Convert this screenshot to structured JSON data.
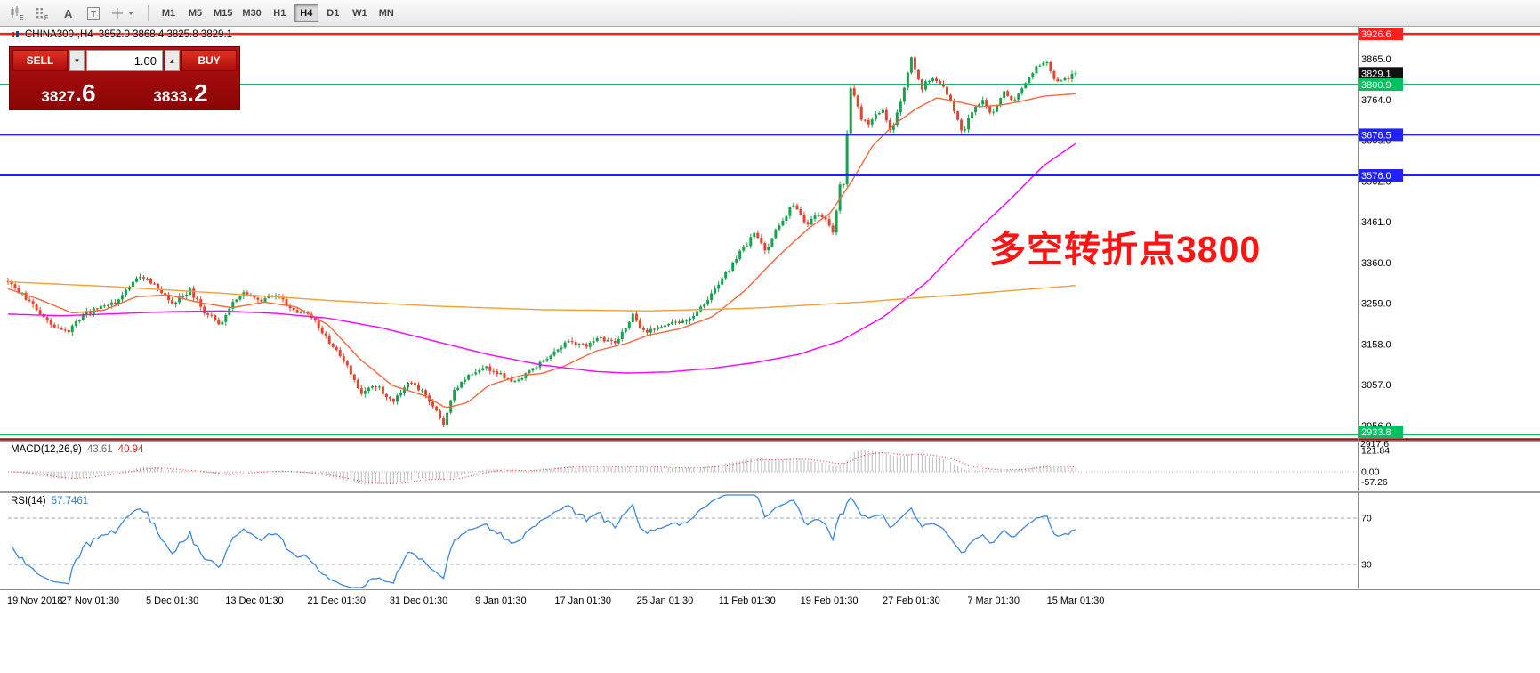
{
  "toolbar": {
    "timeframes": [
      {
        "label": "M1"
      },
      {
        "label": "M5"
      },
      {
        "label": "M15"
      },
      {
        "label": "M30"
      },
      {
        "label": "H1"
      },
      {
        "label": "H4",
        "active": true
      },
      {
        "label": "D1"
      },
      {
        "label": "W1"
      },
      {
        "label": "MN"
      }
    ]
  },
  "chart": {
    "symbol": "CHINA300-,H4",
    "ohlc_text": "3852.0 3868.4 3825.8 3829.1"
  },
  "trade": {
    "sell_label": "SELL",
    "buy_label": "BUY",
    "volume": "1.00",
    "spin_down": "▼",
    "spin_up": "▲",
    "bid_main": "3827",
    "bid_frac": ".6",
    "ask_main": "3833",
    "ask_frac": ".2"
  },
  "macd": {
    "label": "MACD(12,26,9)",
    "main": "43.61",
    "signal": "40.94",
    "scale_labels": [
      "121.84",
      "0.00",
      "-57.26"
    ],
    "scale_values": [
      121.84,
      0,
      -57.26
    ]
  },
  "rsi": {
    "label": "RSI(14)",
    "value": "57.7461",
    "level_labels": [
      "70",
      "30"
    ],
    "level_values": [
      70,
      30
    ]
  },
  "timeline": {
    "dates": [
      "19 Nov 2018",
      "27 Nov 01:30",
      "5 Dec 01:30",
      "13 Dec 01:30",
      "21 Dec 01:30",
      "31 Dec 01:30",
      "9 Jan 01:30",
      "17 Jan 01:30",
      "25 Jan 01:30",
      "11 Feb 01:30",
      "19 Feb 01:30",
      "27 Feb 01:30",
      "7 Mar 01:30",
      "15 Mar 01:30"
    ]
  },
  "labels_extra": {
    "clipped_price_label": "2917.6"
  },
  "chart_data": {
    "type": "candlestick",
    "symbol": "CHINA300-",
    "timeframe": "H4",
    "ohlc_header": {
      "open": 3852.0,
      "high": 3868.4,
      "low": 3825.8,
      "close": 3829.1
    },
    "last_price": 3829.1,
    "bid": 3827.6,
    "ask": 3833.2,
    "ylim": [
      2918.5,
      3944.4
    ],
    "candle_count": 300,
    "bull_color": "#18a24c",
    "bear_color": "#e8432d",
    "y_ticks": [
      3865.0,
      3764.0,
      3663.0,
      3562.0,
      3461.0,
      3360.0,
      3259.0,
      3158.0,
      3057.0,
      2956.0
    ],
    "hlines": [
      {
        "price": 3926.6,
        "color": "#ff1f1f",
        "width": 2.5
      },
      {
        "price": 3800.9,
        "color": "#00c060",
        "width": 2
      },
      {
        "price": 3676.5,
        "color": "#2121ff",
        "width": 2
      },
      {
        "price": 3576.0,
        "color": "#2121ff",
        "width": 2
      },
      {
        "price": 2933.8,
        "color": "#00c060",
        "width": 2
      },
      {
        "price": 2917.6,
        "color": "#8b1a1a",
        "width": 2.5
      }
    ],
    "price_badges": [
      {
        "price": 3926.6,
        "label": "3926.6",
        "bg": "#ff1f1f"
      },
      {
        "price": 3829.1,
        "label": "3829.1",
        "bg": "#111111"
      },
      {
        "price": 3800.9,
        "label": "3800.9",
        "bg": "#00c060"
      },
      {
        "price": 3676.5,
        "label": "3676.5",
        "bg": "#2121ff"
      },
      {
        "price": 3576.0,
        "label": "3576.0",
        "bg": "#2121ff"
      },
      {
        "price": 2933.8,
        "label": "2933.8",
        "bg": "#00c060"
      }
    ],
    "price_path": [
      [
        0,
        3310
      ],
      [
        0.012,
        3285
      ],
      [
        0.025,
        3250
      ],
      [
        0.04,
        3205
      ],
      [
        0.055,
        3185
      ],
      [
        0.07,
        3230
      ],
      [
        0.085,
        3248
      ],
      [
        0.1,
        3258
      ],
      [
        0.115,
        3305
      ],
      [
        0.125,
        3330
      ],
      [
        0.14,
        3295
      ],
      [
        0.155,
        3258
      ],
      [
        0.17,
        3292
      ],
      [
        0.185,
        3235
      ],
      [
        0.2,
        3205
      ],
      [
        0.21,
        3255
      ],
      [
        0.22,
        3290
      ],
      [
        0.235,
        3262
      ],
      [
        0.25,
        3282
      ],
      [
        0.265,
        3245
      ],
      [
        0.285,
        3225
      ],
      [
        0.3,
        3165
      ],
      [
        0.315,
        3115
      ],
      [
        0.33,
        3035
      ],
      [
        0.345,
        3055
      ],
      [
        0.36,
        3012
      ],
      [
        0.375,
        3062
      ],
      [
        0.39,
        3040
      ],
      [
        0.4,
        2995
      ],
      [
        0.408,
        2962
      ],
      [
        0.418,
        3045
      ],
      [
        0.43,
        3078
      ],
      [
        0.445,
        3102
      ],
      [
        0.46,
        3085
      ],
      [
        0.475,
        3062
      ],
      [
        0.49,
        3092
      ],
      [
        0.51,
        3132
      ],
      [
        0.525,
        3165
      ],
      [
        0.54,
        3152
      ],
      [
        0.555,
        3172
      ],
      [
        0.57,
        3158
      ],
      [
        0.585,
        3232
      ],
      [
        0.595,
        3188
      ],
      [
        0.61,
        3202
      ],
      [
        0.625,
        3208
      ],
      [
        0.64,
        3222
      ],
      [
        0.655,
        3268
      ],
      [
        0.67,
        3322
      ],
      [
        0.685,
        3382
      ],
      [
        0.7,
        3432
      ],
      [
        0.71,
        3382
      ],
      [
        0.72,
        3442
      ],
      [
        0.735,
        3502
      ],
      [
        0.748,
        3455
      ],
      [
        0.76,
        3482
      ],
      [
        0.768,
        3462
      ],
      [
        0.773,
        3430
      ],
      [
        0.779,
        3552
      ],
      [
        0.784,
        3560
      ],
      [
        0.788,
        3802
      ],
      [
        0.794,
        3765
      ],
      [
        0.8,
        3712
      ],
      [
        0.808,
        3705
      ],
      [
        0.818,
        3742
      ],
      [
        0.827,
        3682
      ],
      [
        0.837,
        3762
      ],
      [
        0.846,
        3868
      ],
      [
        0.856,
        3792
      ],
      [
        0.865,
        3822
      ],
      [
        0.875,
        3802
      ],
      [
        0.885,
        3742
      ],
      [
        0.894,
        3682
      ],
      [
        0.903,
        3732
      ],
      [
        0.913,
        3762
      ],
      [
        0.922,
        3722
      ],
      [
        0.932,
        3782
      ],
      [
        0.942,
        3762
      ],
      [
        0.952,
        3802
      ],
      [
        0.962,
        3842
      ],
      [
        0.972,
        3862
      ],
      [
        0.982,
        3802
      ],
      [
        0.992,
        3818
      ],
      [
        1,
        3829.1
      ]
    ],
    "moving_averages": [
      {
        "name": "fast-ma",
        "color": "#f4693c",
        "points": [
          [
            0,
            3295
          ],
          [
            0.03,
            3268
          ],
          [
            0.06,
            3235
          ],
          [
            0.09,
            3242
          ],
          [
            0.12,
            3275
          ],
          [
            0.15,
            3280
          ],
          [
            0.18,
            3260
          ],
          [
            0.21,
            3248
          ],
          [
            0.24,
            3262
          ],
          [
            0.27,
            3250
          ],
          [
            0.3,
            3205
          ],
          [
            0.33,
            3120
          ],
          [
            0.36,
            3055
          ],
          [
            0.39,
            3030
          ],
          [
            0.41,
            3000
          ],
          [
            0.43,
            3012
          ],
          [
            0.45,
            3055
          ],
          [
            0.48,
            3080
          ],
          [
            0.5,
            3085
          ],
          [
            0.52,
            3102
          ],
          [
            0.55,
            3140
          ],
          [
            0.58,
            3160
          ],
          [
            0.6,
            3180
          ],
          [
            0.63,
            3196
          ],
          [
            0.66,
            3226
          ],
          [
            0.69,
            3290
          ],
          [
            0.72,
            3372
          ],
          [
            0.75,
            3445
          ],
          [
            0.77,
            3482
          ],
          [
            0.79,
            3560
          ],
          [
            0.81,
            3650
          ],
          [
            0.83,
            3702
          ],
          [
            0.85,
            3740
          ],
          [
            0.87,
            3768
          ],
          [
            0.89,
            3758
          ],
          [
            0.91,
            3746
          ],
          [
            0.93,
            3750
          ],
          [
            0.95,
            3760
          ],
          [
            0.97,
            3772
          ],
          [
            1,
            3778
          ]
        ]
      },
      {
        "name": "mid-ma",
        "color": "#ff00ff",
        "points": [
          [
            0,
            3232
          ],
          [
            0.05,
            3228
          ],
          [
            0.1,
            3233
          ],
          [
            0.15,
            3238
          ],
          [
            0.2,
            3240
          ],
          [
            0.25,
            3234
          ],
          [
            0.3,
            3222
          ],
          [
            0.35,
            3198
          ],
          [
            0.4,
            3165
          ],
          [
            0.45,
            3132
          ],
          [
            0.5,
            3106
          ],
          [
            0.55,
            3090
          ],
          [
            0.58,
            3086
          ],
          [
            0.62,
            3089
          ],
          [
            0.66,
            3098
          ],
          [
            0.7,
            3112
          ],
          [
            0.74,
            3132
          ],
          [
            0.78,
            3166
          ],
          [
            0.82,
            3225
          ],
          [
            0.86,
            3310
          ],
          [
            0.9,
            3420
          ],
          [
            0.94,
            3520
          ],
          [
            0.97,
            3600
          ],
          [
            1,
            3655
          ]
        ]
      },
      {
        "name": "slow-ma",
        "color": "#f0a030",
        "points": [
          [
            0,
            3312
          ],
          [
            0.1,
            3300
          ],
          [
            0.2,
            3284
          ],
          [
            0.3,
            3266
          ],
          [
            0.4,
            3252
          ],
          [
            0.5,
            3243
          ],
          [
            0.6,
            3240
          ],
          [
            0.7,
            3247
          ],
          [
            0.8,
            3262
          ],
          [
            0.9,
            3282
          ],
          [
            1,
            3303
          ]
        ]
      }
    ],
    "indicators": {
      "macd": {
        "params": "12,26,9",
        "main": 43.61,
        "signal": 40.94,
        "scale_max": 121.84,
        "scale_min": -57.26
      },
      "rsi": {
        "params": "14",
        "value": 57.7461,
        "levels": [
          70,
          30
        ]
      }
    },
    "annotation": {
      "text": "多空转折点3800",
      "color": "#fd1414"
    }
  }
}
